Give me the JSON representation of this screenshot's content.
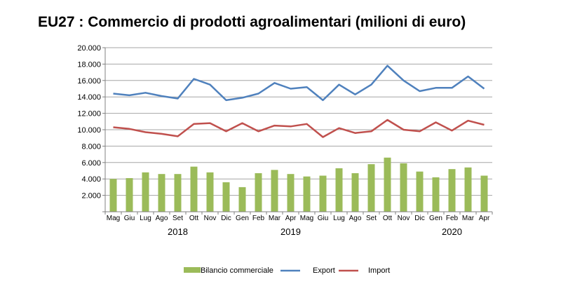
{
  "chart_data": {
    "type": "bar+line",
    "title": "EU27 : Commercio di prodotti agroalimentari (milioni di euro)",
    "xlabel": "",
    "ylabel": "",
    "ylim": [
      0,
      20000
    ],
    "yticks": [
      "2.000",
      "4.000",
      "6.000",
      "8.000",
      "10.000",
      "12.000",
      "14.000",
      "16.000",
      "18.000",
      "20.000"
    ],
    "ytick_values": [
      2000,
      4000,
      6000,
      8000,
      10000,
      12000,
      14000,
      16000,
      18000,
      20000
    ],
    "categories": [
      "Mag",
      "Giu",
      "Lug",
      "Ago",
      "Set",
      "Ott",
      "Nov",
      "Dic",
      "Gen",
      "Feb",
      "Mar",
      "Apr",
      "Mag",
      "Giu",
      "Lug",
      "Ago",
      "Set",
      "Ott",
      "Nov",
      "Dic",
      "Gen",
      "Feb",
      "Mar",
      "Apr"
    ],
    "year_labels": [
      {
        "label": "2018",
        "index": 4
      },
      {
        "label": "2019",
        "index": 11
      },
      {
        "label": "2020",
        "index": 21
      }
    ],
    "grid": true,
    "legend_position": "bottom",
    "series": [
      {
        "name": "Bilancio commerciale",
        "type": "bar",
        "color": "#9bbb59",
        "values": [
          4000,
          4100,
          4800,
          4600,
          4600,
          5500,
          4800,
          3600,
          3000,
          4700,
          5100,
          4600,
          4300,
          4400,
          5300,
          4700,
          5800,
          6600,
          5900,
          4900,
          4200,
          5200,
          5400,
          4400
        ]
      },
      {
        "name": "Export",
        "type": "line",
        "color": "#4f81bd",
        "values": [
          14400,
          14200,
          14500,
          14100,
          13800,
          16200,
          15500,
          13600,
          13900,
          14400,
          15700,
          15000,
          15200,
          13600,
          15500,
          14300,
          15500,
          17800,
          16000,
          14700,
          15100,
          15100,
          16500,
          15000
        ]
      },
      {
        "name": "Import",
        "type": "line",
        "color": "#c0504d",
        "values": [
          10300,
          10100,
          9700,
          9500,
          9200,
          10700,
          10800,
          9800,
          10800,
          9800,
          10500,
          10400,
          10700,
          9100,
          10200,
          9600,
          9800,
          11200,
          10000,
          9800,
          10900,
          9900,
          11100,
          10600
        ]
      }
    ]
  }
}
